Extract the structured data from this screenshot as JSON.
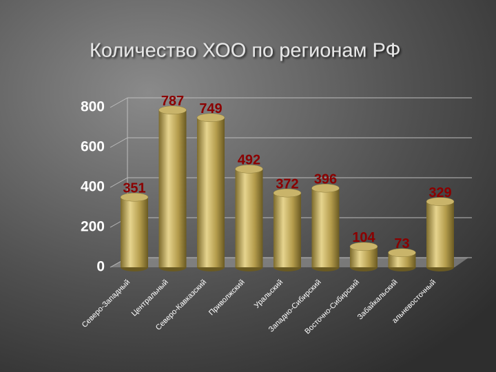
{
  "chart_data": {
    "type": "bar",
    "title": "Количество ХОО по регионам РФ",
    "categories": [
      "Северо-Западный",
      "Центральный",
      "Северо-Кавказский",
      "Приволжский",
      "Уральский",
      "Западно-Сибирский",
      "Восточно-Сибирский",
      "Забайкальский",
      "альневосточный"
    ],
    "values": [
      351,
      787,
      749,
      492,
      372,
      396,
      104,
      73,
      329
    ],
    "color": "#c9b46a",
    "label_color": "#8b0000",
    "ylim": [
      0,
      800
    ],
    "yticks": [
      0,
      200,
      400,
      600,
      800
    ],
    "grid": true
  }
}
